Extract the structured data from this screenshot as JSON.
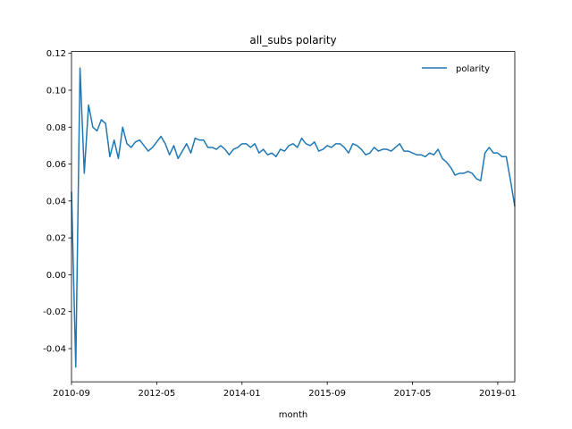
{
  "chart_data": {
    "type": "line",
    "title": "all_subs polarity",
    "x_label": "month",
    "x": [
      "2010-09",
      "2010-10",
      "2010-11",
      "2010-12",
      "2011-01",
      "2011-02",
      "2011-03",
      "2011-04",
      "2011-05",
      "2011-06",
      "2011-07",
      "2011-08",
      "2011-09",
      "2011-10",
      "2011-11",
      "2011-12",
      "2012-01",
      "2012-02",
      "2012-03",
      "2012-04",
      "2012-05",
      "2012-06",
      "2012-07",
      "2012-08",
      "2012-09",
      "2012-10",
      "2012-11",
      "2012-12",
      "2013-01",
      "2013-02",
      "2013-03",
      "2013-04",
      "2013-05",
      "2013-06",
      "2013-07",
      "2013-08",
      "2013-09",
      "2013-10",
      "2013-11",
      "2013-12",
      "2014-01",
      "2014-02",
      "2014-03",
      "2014-04",
      "2014-05",
      "2014-06",
      "2014-07",
      "2014-08",
      "2014-09",
      "2014-10",
      "2014-11",
      "2014-12",
      "2015-01",
      "2015-02",
      "2015-03",
      "2015-04",
      "2015-05",
      "2015-06",
      "2015-07",
      "2015-08",
      "2015-09",
      "2015-10",
      "2015-11",
      "2015-12",
      "2016-01",
      "2016-02",
      "2016-03",
      "2016-04",
      "2016-05",
      "2016-06",
      "2016-07",
      "2016-08",
      "2016-09",
      "2016-10",
      "2016-11",
      "2016-12",
      "2017-01",
      "2017-02",
      "2017-03",
      "2017-04",
      "2017-05",
      "2017-06",
      "2017-07",
      "2017-08",
      "2017-09",
      "2017-10",
      "2017-11",
      "2017-12",
      "2018-01",
      "2018-02",
      "2018-03",
      "2018-04",
      "2018-05",
      "2018-06",
      "2018-07",
      "2018-08",
      "2018-09",
      "2018-10",
      "2018-11",
      "2018-12",
      "2019-01",
      "2019-02",
      "2019-03",
      "2019-04",
      "2019-05"
    ],
    "series": [
      {
        "name": "polarity",
        "color": "#1f77b4",
        "values": [
          0.045,
          -0.05,
          0.112,
          0.055,
          0.092,
          0.08,
          0.078,
          0.084,
          0.082,
          0.064,
          0.073,
          0.063,
          0.08,
          0.071,
          0.069,
          0.072,
          0.073,
          0.07,
          0.067,
          0.069,
          0.072,
          0.075,
          0.071,
          0.065,
          0.07,
          0.063,
          0.067,
          0.071,
          0.066,
          0.074,
          0.073,
          0.073,
          0.069,
          0.069,
          0.068,
          0.07,
          0.068,
          0.065,
          0.068,
          0.069,
          0.071,
          0.071,
          0.069,
          0.071,
          0.066,
          0.068,
          0.065,
          0.066,
          0.064,
          0.068,
          0.067,
          0.07,
          0.071,
          0.069,
          0.074,
          0.071,
          0.07,
          0.072,
          0.067,
          0.068,
          0.07,
          0.069,
          0.071,
          0.071,
          0.069,
          0.066,
          0.071,
          0.07,
          0.068,
          0.065,
          0.066,
          0.069,
          0.067,
          0.068,
          0.068,
          0.067,
          0.069,
          0.071,
          0.067,
          0.067,
          0.066,
          0.065,
          0.065,
          0.064,
          0.066,
          0.065,
          0.068,
          0.063,
          0.061,
          0.058,
          0.054,
          0.055,
          0.055,
          0.056,
          0.055,
          0.052,
          0.051,
          0.066,
          0.069,
          0.066,
          0.066,
          0.064,
          0.064,
          0.051,
          0.037
        ]
      }
    ],
    "xlim": [
      "2010-09",
      "2019-05"
    ],
    "xticks": [
      "2010-09",
      "2012-05",
      "2014-01",
      "2015-09",
      "2017-05",
      "2019-01"
    ],
    "ylim": [
      -0.058,
      0.121
    ],
    "yticks": [
      -0.04,
      -0.02,
      {
        "value": 0,
        "label": "0.00"
      },
      0.02,
      0.04,
      0.06,
      0.08,
      {
        "value": 0.1,
        "label": "0.10"
      },
      0.12
    ],
    "legend": "upper right",
    "grid": false
  }
}
